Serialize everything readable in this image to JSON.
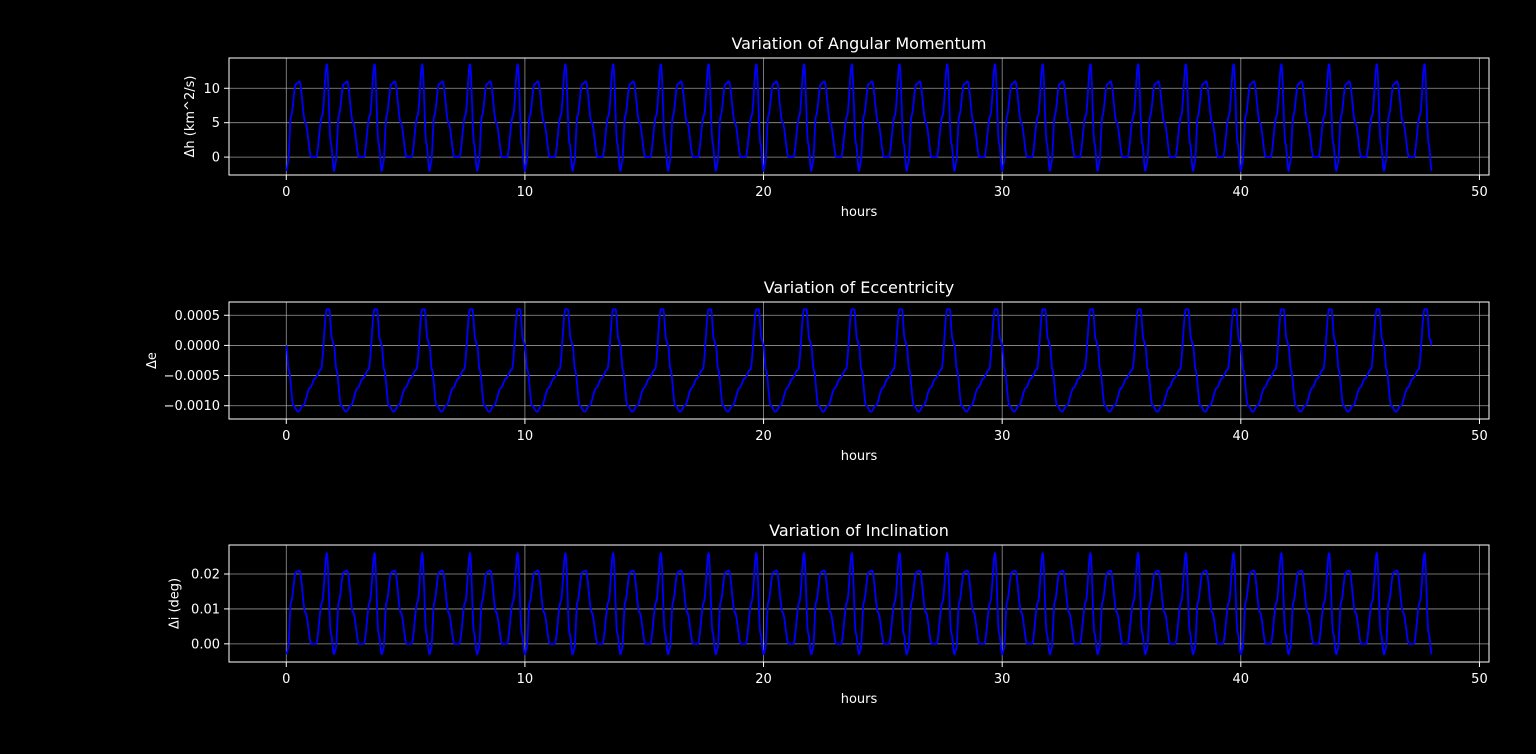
{
  "chart_data": [
    {
      "type": "line",
      "title": "Variation of Angular Momentum",
      "xlabel": "hours",
      "ylabel": "Δh (km^2/s)",
      "xlim": [
        -2.4,
        50.4
      ],
      "ylim": [
        -2.6,
        14.4
      ],
      "xticks": [
        0,
        10,
        20,
        30,
        40,
        50
      ],
      "yticks": [
        0,
        5,
        10
      ],
      "ytick_labels": [
        "0",
        "5",
        "10"
      ],
      "grid": true,
      "line_color": "#0000ff",
      "period_hours": 2.0,
      "x_range": [
        0,
        48
      ],
      "cycle_profile": {
        "t": [
          0,
          0.07,
          0.2,
          0.4,
          0.55,
          0.8,
          1.05,
          1.25,
          1.5,
          1.7,
          1.87,
          2.0
        ],
        "y": [
          -2,
          -0.8,
          6,
          10.6,
          11.0,
          5.0,
          0,
          0,
          6,
          13.5,
          2,
          -2
        ]
      }
    },
    {
      "type": "line",
      "title": "Variation of Eccentricity",
      "xlabel": "hours",
      "ylabel": "Δe",
      "xlim": [
        -2.4,
        50.4
      ],
      "ylim": [
        -0.00122,
        0.00072
      ],
      "xticks": [
        0,
        10,
        20,
        30,
        40,
        50
      ],
      "yticks": [
        0.0005,
        0,
        -0.0005,
        -0.001
      ],
      "ytick_labels": [
        "0.0005",
        "0.0000",
        "−0.0005",
        "−0.0010"
      ],
      "grid": true,
      "line_color": "#0000ff",
      "period_hours": 2.0,
      "x_range": [
        0,
        48
      ],
      "cycle_profile": {
        "t": [
          0,
          0.1,
          0.3,
          0.5,
          0.7,
          1.0,
          1.2,
          1.45,
          1.7,
          1.8,
          1.92,
          2.0
        ],
        "y": [
          0,
          -0.0004,
          -0.001,
          -0.0011,
          -0.001,
          -0.0007,
          -0.00055,
          -0.0004,
          0.0006,
          0.0006,
          0.0001,
          0
        ]
      }
    },
    {
      "type": "line",
      "title": "Variation of Inclination",
      "xlabel": "hours",
      "ylabel": "Δi (deg)",
      "xlim": [
        -2.4,
        50.4
      ],
      "ylim": [
        -0.0052,
        0.0283
      ],
      "xticks": [
        0,
        10,
        20,
        30,
        40,
        50
      ],
      "yticks": [
        0,
        0.01,
        0.02
      ],
      "ytick_labels": [
        "0.00",
        "0.01",
        "0.02"
      ],
      "grid": true,
      "line_color": "#0000ff",
      "period_hours": 2.0,
      "x_range": [
        0,
        48
      ],
      "cycle_profile": {
        "t": [
          0,
          0.07,
          0.2,
          0.4,
          0.55,
          0.8,
          1.05,
          1.25,
          1.5,
          1.7,
          1.87,
          2.0
        ],
        "y": [
          -0.003,
          -0.0015,
          0.012,
          0.0205,
          0.021,
          0.009,
          0,
          0,
          0.012,
          0.026,
          0.003,
          -0.003
        ]
      }
    }
  ]
}
